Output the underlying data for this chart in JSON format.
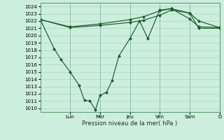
{
  "background_color": "#cceedd",
  "grid_color": "#aaccbb",
  "line_color": "#1a5e2a",
  "xlabel": "Pression niveau de la mer( hPa )",
  "ylim": [
    1009.5,
    1024.5
  ],
  "ytick_min": 1010,
  "ytick_max": 1024,
  "xlim": [
    0,
    13.0
  ],
  "day_labels": [
    "Lun",
    "Mer",
    "Jeu",
    "Ven",
    "Sam",
    "D"
  ],
  "day_positions": [
    2.16,
    4.33,
    6.5,
    8.66,
    10.83,
    13.0
  ],
  "series1_x": [
    0,
    2.16,
    4.33,
    6.5,
    7.5,
    8.66,
    9.5,
    10.83,
    11.5,
    13.0
  ],
  "series1_y": [
    1022.2,
    1021.1,
    1021.4,
    1021.8,
    1022.1,
    1022.8,
    1023.5,
    1023.1,
    1022.0,
    1021.1
  ],
  "series2_x": [
    0,
    2.16,
    4.33,
    6.5,
    7.5,
    8.66,
    9.5,
    10.83,
    11.5,
    13.0
  ],
  "series2_y": [
    1022.2,
    1021.2,
    1021.6,
    1022.2,
    1022.6,
    1023.4,
    1023.7,
    1022.3,
    1021.2,
    1021.1
  ],
  "series3_x": [
    0,
    1.0,
    1.5,
    2.16,
    2.8,
    3.2,
    3.6,
    4.0,
    4.33,
    4.8,
    5.2,
    5.7,
    6.5,
    7.2,
    7.8,
    8.66,
    9.5,
    10.83,
    11.5,
    13.0
  ],
  "series3_y": [
    1022.2,
    1018.2,
    1016.7,
    1015.0,
    1013.2,
    1011.1,
    1011.0,
    1009.8,
    1011.8,
    1012.2,
    1013.8,
    1017.2,
    1019.6,
    1022.0,
    1019.6,
    1023.5,
    1023.7,
    1023.1,
    1021.0,
    1021.0
  ]
}
